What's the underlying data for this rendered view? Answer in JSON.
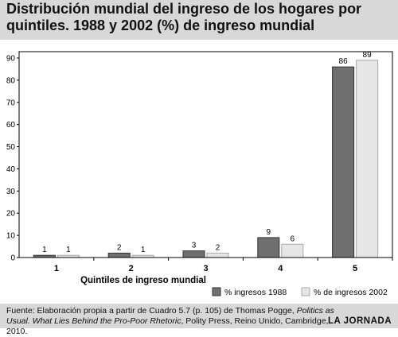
{
  "title": "Distribución mundial del ingreso de los hogares por quintiles. 1988 y 2002 (%) de ingreso mundial",
  "chart_data": {
    "type": "bar",
    "categories": [
      "1",
      "2",
      "3",
      "4",
      "5"
    ],
    "series": [
      {
        "name": "% ingresos 1988",
        "values": [
          1,
          2,
          3,
          9,
          86
        ],
        "color": "#6f6f6f"
      },
      {
        "name": "% de ingresos 2002",
        "values": [
          1,
          1,
          2,
          6,
          89
        ],
        "color": "#e6e6e6"
      }
    ],
    "xlabel": "Quintiles de ingreso mundial",
    "ylabel": "",
    "ylim": [
      0,
      90
    ],
    "yticks": [
      0,
      10,
      20,
      30,
      40,
      50,
      60,
      70,
      80,
      90
    ],
    "grid": false,
    "legend": "bottom-right"
  },
  "source": {
    "part1": "Fuente: Elaboración propia a partir de Cuadro 5.7 (p. 105) de Thomas Pogge, ",
    "italic": "Politics as Usual. What Lies Behind the Pro-Poor Rhetoric",
    "part2": ", Polity Press, Reino Unido, Cambridge, 2010."
  },
  "brand": "LA JORNADA"
}
